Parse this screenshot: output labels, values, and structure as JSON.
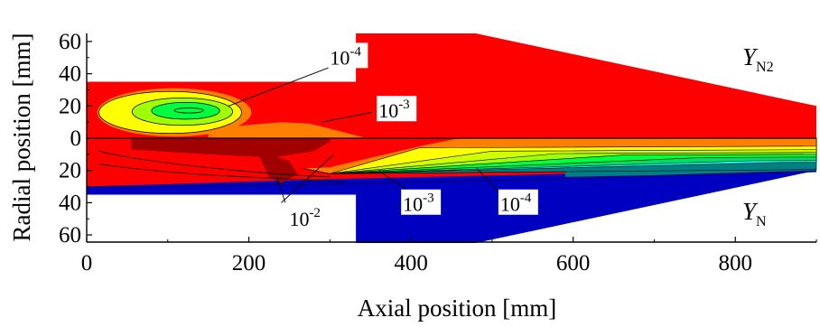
{
  "chart_data": {
    "type": "heatmap",
    "title": "",
    "xlabel": "Axial position [mm]",
    "ylabel": "Radial position [mm]",
    "xlim": [
      0,
      900
    ],
    "ylim_upper": [
      0,
      65
    ],
    "ylim_lower": [
      0,
      65
    ],
    "x_ticks": [
      "0",
      "200",
      "400",
      "600",
      "800"
    ],
    "x_tick_values": [
      0,
      200,
      400,
      600,
      800
    ],
    "y_ticks_upper": [
      "60",
      "40",
      "20",
      "0"
    ],
    "y_tick_values_upper": [
      60,
      40,
      20,
      0
    ],
    "y_ticks_lower": [
      "20",
      "40",
      "60"
    ],
    "y_tick_values_lower": [
      20,
      40,
      60
    ],
    "upper_species": {
      "base": "Y",
      "sub": "N2"
    },
    "lower_species": {
      "base": "Y",
      "sub": "N"
    },
    "geometry": {
      "inlet_radius_mm": 35,
      "step_x_mm": 332,
      "chamber_radius_mm": 65,
      "taper_start_x_mm": 480,
      "outlet_radius_mm": 20,
      "lower_core_radius_mm": 30
    },
    "contour_levels": [
      "1e-2",
      "1e-3",
      "1e-4"
    ],
    "annotations": [
      {
        "id": "upper-1e-4",
        "base": "10",
        "exp": "-4",
        "x_mm": 300,
        "y_mm": 48
      },
      {
        "id": "upper-1e-3",
        "base": "10",
        "exp": "-3",
        "x_mm": 360,
        "y_mm": 15
      },
      {
        "id": "lower-1e-3",
        "base": "10",
        "exp": "-3",
        "x_mm": 390,
        "y_mm": -43
      },
      {
        "id": "lower-1e-4",
        "base": "10",
        "exp": "-4",
        "x_mm": 510,
        "y_mm": -43
      },
      {
        "id": "lower-1e-2",
        "base": "10",
        "exp": "-2",
        "x_mm": 250,
        "y_mm": -52
      }
    ],
    "colors": {
      "red": "#ff0000",
      "dark_red": "#a00000",
      "orange": "#ff8000",
      "yellow": "#ffff00",
      "yellow_green": "#a0ff00",
      "green": "#00ff40",
      "cyan": "#00ffff",
      "teal": "#008080",
      "blue": "#0000c0",
      "navy": "#00008b",
      "background": "#ffffff"
    }
  }
}
